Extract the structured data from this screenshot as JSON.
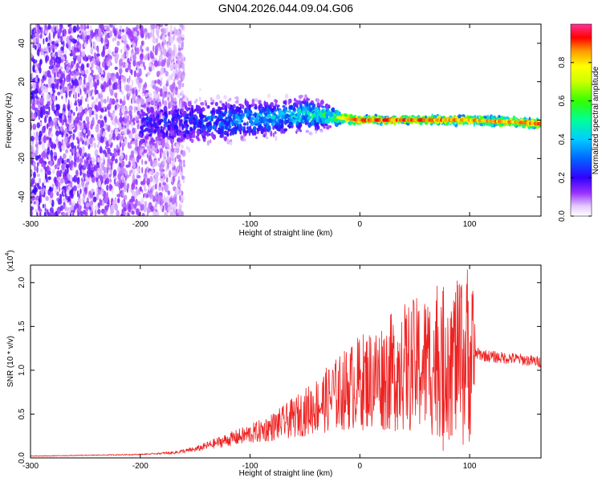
{
  "title": "GN04.2026.044.09.04.G06",
  "chart_data": [
    {
      "type": "heatmap",
      "xlabel": "Height of straight line (km)",
      "ylabel": "Frequency (Hz)",
      "xlim": [
        -300,
        165
      ],
      "ylim": [
        -50,
        50
      ],
      "x_ticks": [
        -300,
        -200,
        -100,
        0,
        100
      ],
      "y_ticks": [
        -40,
        -20,
        0,
        20,
        40
      ],
      "colorbar": {
        "label": "Normalized spectral amplitude",
        "range": [
          0,
          1
        ],
        "ticks": [
          "0.0",
          "0.2",
          "0.4",
          "0.6",
          "0.8"
        ]
      },
      "ridge": [
        {
          "x": -190,
          "f": -2,
          "amp": 0.25,
          "spread": 10
        },
        {
          "x": -150,
          "f": -1,
          "amp": 0.3,
          "spread": 8
        },
        {
          "x": -110,
          "f": 0,
          "amp": 0.4,
          "spread": 7
        },
        {
          "x": -80,
          "f": 1,
          "amp": 0.45,
          "spread": 6
        },
        {
          "x": -50,
          "f": 3,
          "amp": 0.5,
          "spread": 6
        },
        {
          "x": -30,
          "f": 2,
          "amp": 0.6,
          "spread": 4
        },
        {
          "x": 0,
          "f": 0,
          "amp": 0.95,
          "spread": 1.5
        },
        {
          "x": 50,
          "f": 0,
          "amp": 0.95,
          "spread": 1.5
        },
        {
          "x": 100,
          "f": 0,
          "amp": 0.9,
          "spread": 2
        },
        {
          "x": 140,
          "f": -1,
          "amp": 0.9,
          "spread": 2
        },
        {
          "x": 165,
          "f": -2,
          "amp": 0.95,
          "spread": 2
        }
      ]
    },
    {
      "type": "line",
      "name": "SNR",
      "xlabel": "Height of straight line (km)",
      "ylabel": "SNR (10 * v/v)",
      "y_multiplier": "(x10",
      "y_multiplier_exp": "4",
      "xlim": [
        -300,
        165
      ],
      "ylim": [
        0,
        2.2
      ],
      "x_ticks": [
        -300,
        -200,
        -100,
        0,
        100
      ],
      "y_ticks": [
        "0.0",
        "0.5",
        "1.0",
        "1.5",
        "2.0"
      ],
      "envelope": {
        "x": [
          -300,
          -250,
          -200,
          -170,
          -150,
          -130,
          -110,
          -90,
          -70,
          -50,
          -30,
          -10,
          0,
          20,
          40,
          60,
          80,
          90,
          100,
          105,
          120,
          140,
          165
        ],
        "y": [
          0.02,
          0.03,
          0.04,
          0.06,
          0.1,
          0.18,
          0.25,
          0.32,
          0.42,
          0.55,
          0.7,
          0.85,
          0.92,
          1.0,
          1.1,
          1.15,
          1.18,
          1.2,
          1.22,
          1.2,
          1.16,
          1.14,
          1.1
        ]
      },
      "spikes": [
        {
          "x": 98,
          "y": 2.15
        },
        {
          "x": 92,
          "y": 1.95
        },
        {
          "x": 86,
          "y": 1.65
        },
        {
          "x": 80,
          "y": 1.6
        },
        {
          "x": 38,
          "y": 1.55
        },
        {
          "x": -25,
          "y": 1.0
        },
        {
          "x": 76,
          "y": 0.08
        },
        {
          "x": 94,
          "y": 0.15
        }
      ]
    }
  ]
}
